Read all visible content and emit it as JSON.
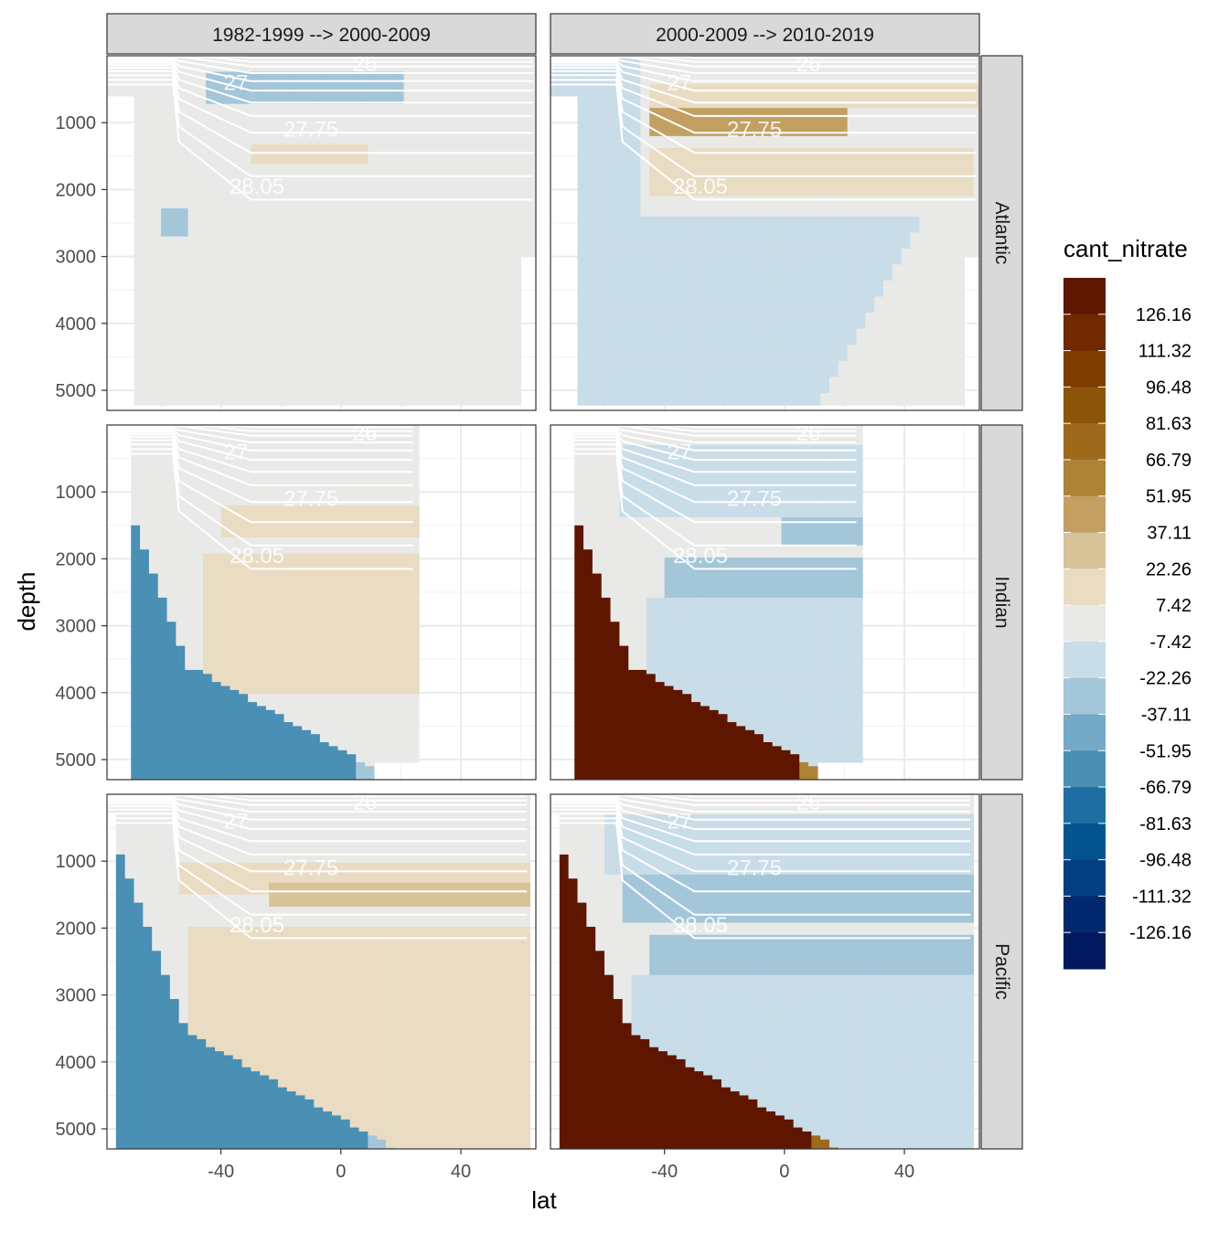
{
  "chart_data": {
    "type": "heatmap",
    "title": "",
    "xlabel": "lat",
    "ylabel": "depth",
    "x_ticks": [
      -40,
      0,
      40
    ],
    "y_ticks": [
      1000,
      2000,
      3000,
      4000,
      5000
    ],
    "xlim": [
      -78,
      65
    ],
    "ylim": [
      5300,
      0
    ],
    "y_reversed": true,
    "facet_columns": [
      "1982-1999 --> 2000-2009",
      "2000-2009 --> 2010-2019"
    ],
    "facet_rows": [
      "Atlantic",
      "Indian",
      "Pacific"
    ],
    "legend": {
      "title": "cant_nitrate",
      "position": "right",
      "breaks": [
        "126.16",
        "111.32",
        "96.48",
        "81.63",
        "66.79",
        "51.95",
        "37.11",
        "22.26",
        "7.42",
        "-7.42",
        "-22.26",
        "-37.11",
        "-51.95",
        "-66.79",
        "-81.63",
        "-96.48",
        "-111.32",
        "-126.16"
      ],
      "colors": [
        "#5f1600",
        "#702900",
        "#7f3c00",
        "#8c5409",
        "#9d6a1c",
        "#ae8237",
        "#c3a062",
        "#d8c298",
        "#e9dcc3",
        "#e9eae8",
        "#c9dde8",
        "#a3c6d9",
        "#74aac8",
        "#4a8fb4",
        "#1f6ea3",
        "#04558f",
        "#043f84",
        "#02296e",
        "#021960"
      ]
    },
    "isopycnal_labels": [
      "26",
      "27",
      "27.75",
      "28.05"
    ],
    "grid": true
  }
}
